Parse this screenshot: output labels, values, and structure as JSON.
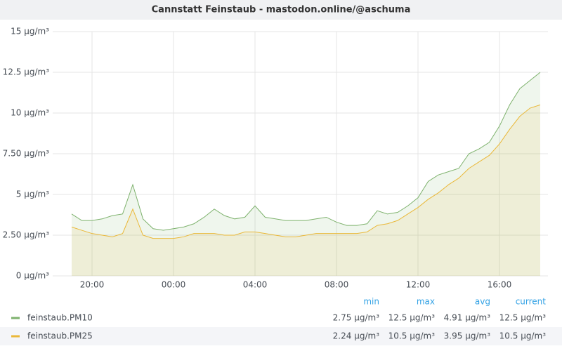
{
  "chart_data": {
    "type": "line",
    "title": "Cannstatt Feinstaub - mastodon.online/@aschuma",
    "categories": [
      null,
      null,
      "20:00",
      null,
      null,
      null,
      null,
      null,
      null,
      null,
      "00:00",
      null,
      null,
      null,
      null,
      null,
      null,
      null,
      "04:00",
      null,
      null,
      null,
      null,
      null,
      null,
      null,
      "08:00",
      null,
      null,
      null,
      null,
      null,
      null,
      null,
      "12:00",
      null,
      null,
      null,
      null,
      null,
      null,
      null,
      "16:00",
      null,
      null,
      null,
      null
    ],
    "ylim": [
      0,
      15
    ],
    "yticks": [
      {
        "value": 0,
        "label": "0 µg/m³"
      },
      {
        "value": 2.5,
        "label": "2.50 µg/m³"
      },
      {
        "value": 5,
        "label": "5 µg/m³"
      },
      {
        "value": 7.5,
        "label": "7.50 µg/m³"
      },
      {
        "value": 10,
        "label": "10 µg/m³"
      },
      {
        "value": 12.5,
        "label": "12.5 µg/m³"
      },
      {
        "value": 15,
        "label": "15 µg/m³"
      }
    ],
    "grid": true,
    "fill": true,
    "legend_columns": [
      "min",
      "max",
      "avg",
      "current"
    ],
    "series": [
      {
        "name": "feinstaub.PM10",
        "color": "#7eb26d",
        "values": [
          3.8,
          3.4,
          3.4,
          3.5,
          3.7,
          3.8,
          5.6,
          3.5,
          2.9,
          2.8,
          2.9,
          3.0,
          3.2,
          3.6,
          4.1,
          3.7,
          3.5,
          3.6,
          4.3,
          3.6,
          3.5,
          3.4,
          3.4,
          3.4,
          3.5,
          3.6,
          3.3,
          3.1,
          3.1,
          3.2,
          4.0,
          3.8,
          3.9,
          4.3,
          4.8,
          5.8,
          6.2,
          6.4,
          6.6,
          7.5,
          7.8,
          8.2,
          9.2,
          10.5,
          11.5,
          12.0,
          12.5
        ],
        "stats": [
          2.75,
          12.5,
          4.91,
          12.5
        ],
        "stats_labels": [
          "2.75 µg/m³",
          "12.5 µg/m³",
          "4.91 µg/m³",
          "12.5 µg/m³"
        ]
      },
      {
        "name": "feinstaub.PM25",
        "color": "#eab839",
        "values": [
          3.0,
          2.8,
          2.6,
          2.5,
          2.4,
          2.6,
          4.1,
          2.5,
          2.3,
          2.3,
          2.3,
          2.4,
          2.6,
          2.6,
          2.6,
          2.5,
          2.5,
          2.7,
          2.7,
          2.6,
          2.5,
          2.4,
          2.4,
          2.5,
          2.6,
          2.6,
          2.6,
          2.6,
          2.6,
          2.7,
          3.1,
          3.2,
          3.4,
          3.8,
          4.2,
          4.7,
          5.1,
          5.6,
          6.0,
          6.6,
          7.0,
          7.4,
          8.1,
          9.0,
          9.8,
          10.3,
          10.5
        ],
        "stats": [
          2.24,
          10.5,
          3.95,
          10.5
        ],
        "stats_labels": [
          "2.24 µg/m³",
          "10.5 µg/m³",
          "3.95 µg/m³",
          "10.5 µg/m³"
        ]
      }
    ]
  }
}
